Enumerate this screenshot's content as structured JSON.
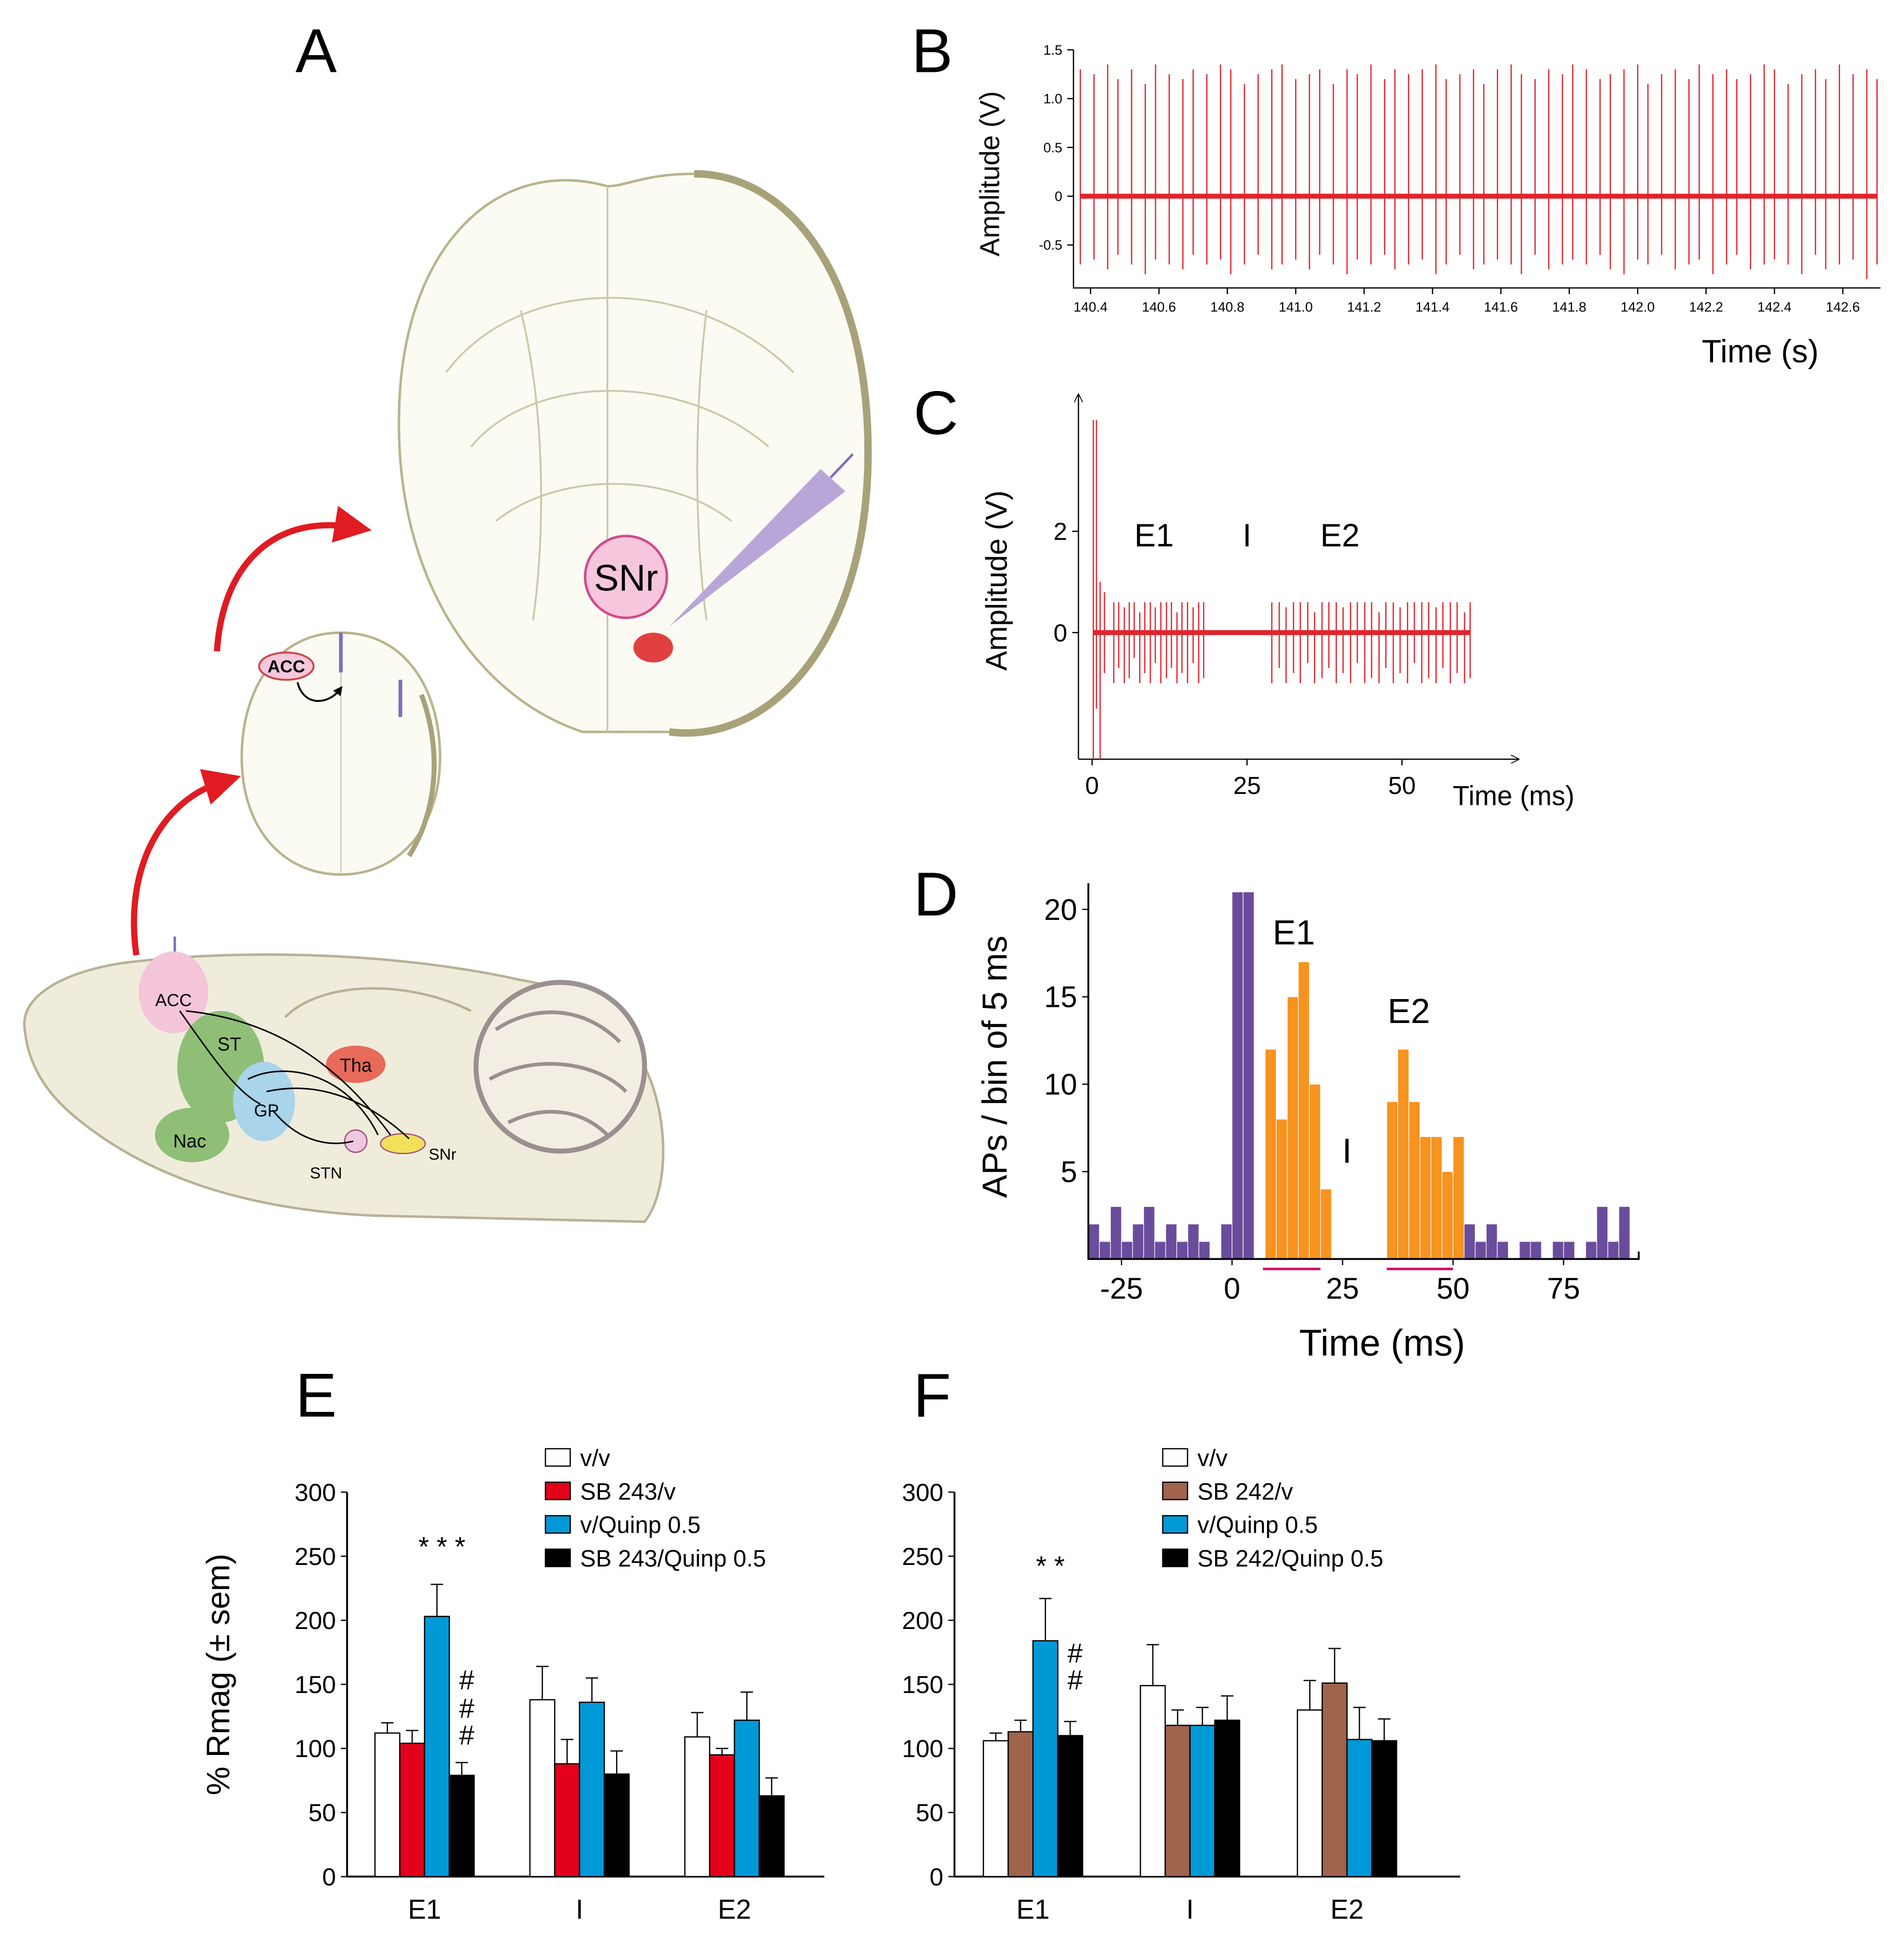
{
  "panels": [
    "A",
    "B",
    "C",
    "D",
    "E",
    "F"
  ],
  "diagram": {
    "labels": [
      "SNr",
      "ACC",
      "ACC",
      "ST",
      "Tha",
      "GP",
      "Nac",
      "STN",
      "SNr"
    ]
  },
  "chart_data": [
    {
      "type": "trace",
      "xlabel": "Time (s)",
      "ylabel": "Amplitude (V)",
      "color": "#e0242c",
      "xlim": [
        140.35,
        142.71
      ],
      "ylim": [
        -0.94,
        1.5
      ],
      "xticks": [
        140.4,
        140.6,
        140.8,
        {
          "value": 141,
          "label": "141.0"
        },
        141.2,
        141.4,
        141.6,
        141.8,
        {
          "value": 142,
          "label": "142.0"
        },
        142.2,
        142.4,
        142.6
      ],
      "yticks": [
        1.5,
        {
          "value": 1,
          "label": "1.0"
        },
        0.5,
        0,
        -0.5
      ],
      "baseline": 0,
      "x": [
        140.37,
        140.41,
        140.45,
        140.48,
        140.52,
        140.56,
        140.59,
        140.63,
        140.67,
        140.7,
        140.74,
        140.78,
        140.81,
        140.85,
        140.89,
        140.93,
        140.96,
        141.0,
        141.04,
        141.07,
        141.11,
        141.15,
        141.18,
        141.22,
        141.26,
        141.29,
        141.33,
        141.37,
        141.41,
        141.44,
        141.48,
        141.52,
        141.55,
        141.59,
        141.63,
        141.66,
        141.7,
        141.74,
        141.78,
        141.81,
        141.85,
        141.89,
        141.92,
        141.96,
        142.0,
        142.03,
        142.07,
        142.11,
        142.15,
        142.18,
        142.22,
        142.26,
        142.29,
        142.33,
        142.37,
        142.4,
        142.44,
        142.48,
        142.52,
        142.55,
        142.59,
        142.63,
        142.67,
        142.7
      ],
      "highs": [
        1.3,
        1.25,
        1.35,
        1.2,
        1.3,
        1.15,
        1.35,
        1.25,
        1.2,
        1.3,
        1.25,
        1.35,
        1.3,
        1.15,
        1.25,
        1.3,
        1.35,
        1.2,
        1.25,
        1.3,
        1.15,
        1.3,
        1.25,
        1.35,
        1.2,
        1.3,
        1.25,
        1.3,
        1.35,
        1.2,
        1.25,
        1.3,
        1.15,
        1.3,
        1.35,
        1.25,
        1.2,
        1.3,
        1.25,
        1.35,
        1.3,
        1.2,
        1.25,
        1.3,
        1.35,
        1.15,
        1.25,
        1.3,
        1.2,
        1.35,
        1.25,
        1.3,
        1.2,
        1.25,
        1.35,
        1.3,
        1.15,
        1.25,
        1.3,
        1.2,
        1.35,
        1.25,
        1.3,
        1.2
      ],
      "lows": [
        -0.7,
        -0.65,
        -0.75,
        -0.6,
        -0.7,
        -0.8,
        -0.65,
        -0.7,
        -0.75,
        -0.6,
        -0.7,
        -0.65,
        -0.8,
        -0.7,
        -0.6,
        -0.75,
        -0.7,
        -0.65,
        -0.75,
        -0.6,
        -0.7,
        -0.8,
        -0.65,
        -0.7,
        -0.6,
        -0.75,
        -0.7,
        -0.65,
        -0.8,
        -0.7,
        -0.6,
        -0.75,
        -0.7,
        -0.65,
        -0.7,
        -0.8,
        -0.6,
        -0.75,
        -0.7,
        -0.65,
        -0.7,
        -0.6,
        -0.75,
        -0.8,
        -0.65,
        -0.7,
        -0.6,
        -0.75,
        -0.7,
        -0.65,
        -0.8,
        -0.7,
        -0.6,
        -0.75,
        -0.7,
        -0.65,
        -0.7,
        -0.8,
        -0.6,
        -0.75,
        -0.7,
        -0.65,
        -0.85,
        -0.7
      ]
    },
    {
      "type": "trace",
      "xlabel": "Time (ms)",
      "ylabel": "Amplitude (V)",
      "color": "#e0242c",
      "xlim": [
        -2.2,
        68.8
      ],
      "ylim": [
        -2.5,
        4.7
      ],
      "xticks": [
        0,
        25,
        50
      ],
      "yticks": [
        0,
        2
      ],
      "baseline": 0,
      "x": [
        0.2,
        0.7,
        1.3,
        2.0,
        3.5,
        4.3,
        5.2,
        6.0,
        6.8,
        7.7,
        8.5,
        9.4,
        10.2,
        11.1,
        12.0,
        12.8,
        13.7,
        14.5,
        15.4,
        16.3,
        17.2,
        18.0,
        29.0,
        30.2,
        31.3,
        32.5,
        33.6,
        34.8,
        35.9,
        37.1,
        38.2,
        39.4,
        40.5,
        41.7,
        42.8,
        44.0,
        45.1,
        46.3,
        47.4,
        48.6,
        49.7,
        50.9,
        52.0,
        53.2,
        54.3,
        55.5,
        56.6,
        57.8,
        58.9,
        60.1,
        61.0
      ],
      "highs": [
        4.2,
        4.2,
        1.0,
        0.8,
        0.6,
        0.6,
        0.5,
        0.6,
        0.6,
        0.4,
        0.6,
        0.6,
        0.5,
        0.6,
        0.6,
        0.6,
        0.4,
        0.6,
        0.6,
        0.5,
        0.6,
        0.6,
        0.6,
        0.6,
        0.5,
        0.6,
        0.6,
        0.6,
        0.4,
        0.6,
        0.6,
        0.6,
        0.5,
        0.6,
        0.6,
        0.6,
        0.6,
        0.4,
        0.6,
        0.6,
        0.5,
        0.6,
        0.6,
        0.6,
        0.6,
        0.5,
        0.6,
        0.6,
        0.6,
        0.4,
        0.6
      ],
      "lows": [
        -2.5,
        -1.5,
        -2.5,
        -0.8,
        -1.0,
        -0.7,
        -1.0,
        -0.9,
        -0.5,
        -1.0,
        -0.8,
        -1.0,
        -0.6,
        -1.0,
        -0.9,
        -0.7,
        -1.0,
        -0.8,
        -1.0,
        -0.6,
        -1.0,
        -0.9,
        -1.0,
        -0.7,
        -1.0,
        -0.8,
        -1.0,
        -0.6,
        -1.0,
        -0.9,
        -0.7,
        -1.0,
        -0.8,
        -1.0,
        -0.6,
        -1.0,
        -0.9,
        -1.0,
        -0.7,
        -1.0,
        -0.8,
        -1.0,
        -0.6,
        -1.0,
        -0.9,
        -1.0,
        -0.7,
        -1.0,
        -0.8,
        -1.0,
        -0.9
      ],
      "annotations": [
        {
          "text": "E1",
          "x": 10,
          "y": 1.7
        },
        {
          "text": "I",
          "x": 25,
          "y": 1.7
        },
        {
          "text": "E2",
          "x": 40,
          "y": 1.7
        }
      ]
    },
    {
      "type": "histogram",
      "xlabel": "Time (ms)",
      "ylabel": "APs / bin of 5 ms",
      "color": "#6a4c9c",
      "highlight_color": "#f7931e",
      "xlim": [
        -32.5,
        92
      ],
      "ylim": [
        0,
        21.5
      ],
      "xticks": [
        -25,
        0,
        25,
        50,
        75
      ],
      "yticks": [
        5,
        10,
        15,
        20
      ],
      "bins": [
        -32.5,
        -30,
        -27.5,
        -25,
        -22.5,
        -20,
        -17.5,
        -15,
        -12.5,
        -10,
        -7.5,
        -5,
        -2.5,
        0,
        2.5,
        5,
        7.5,
        10,
        12.5,
        15,
        17.5,
        20,
        22.5,
        25,
        27.5,
        30,
        32.5,
        35,
        37.5,
        40,
        42.5,
        45,
        47.5,
        50,
        52.5,
        55,
        57.5,
        60,
        62.5,
        65,
        67.5,
        70,
        72.5,
        75,
        77.5,
        80,
        82.5,
        85,
        87.5,
        90
      ],
      "counts": [
        2,
        1,
        3,
        1,
        2,
        3,
        1,
        2,
        1,
        2,
        1,
        0,
        2,
        21,
        21,
        0,
        12,
        8,
        15,
        17,
        10,
        4,
        0,
        0,
        0,
        0,
        0,
        9,
        12,
        9,
        7,
        7,
        5,
        7,
        2,
        1,
        2,
        1,
        0,
        1,
        1,
        0,
        1,
        1,
        0,
        1,
        3,
        1,
        3
      ],
      "highlight_bins": [
        [
          7.5,
          22.5
        ],
        [
          35,
          52.5
        ]
      ],
      "underlines": [
        [
          7,
          20
        ],
        [
          35,
          50
        ]
      ],
      "underline_color": "#d6006f",
      "annotations": [
        {
          "text": "E1",
          "x": 14,
          "y": 18
        },
        {
          "text": "I",
          "x": 26,
          "y": 5.5
        },
        {
          "text": "E2",
          "x": 40,
          "y": 13.5
        }
      ]
    },
    {
      "type": "bar",
      "ylabel": "% Rmag (± sem)",
      "categories": [
        "E1",
        "I",
        "E2"
      ],
      "ylim": [
        0,
        300
      ],
      "yticks": [
        0,
        50,
        100,
        150,
        200,
        250,
        300
      ],
      "series": [
        {
          "name": "v/v",
          "color": "#ffffff",
          "values": [
            112,
            138,
            109
          ],
          "errors": [
            8,
            26,
            19
          ]
        },
        {
          "name": "SB 243/v",
          "color": "#e3001b",
          "values": [
            104,
            88,
            95
          ],
          "errors": [
            10,
            19,
            5
          ]
        },
        {
          "name": "v/Quinp 0.5",
          "color": "#0099d8",
          "values": [
            203,
            136,
            122
          ],
          "errors": [
            25,
            19,
            22
          ]
        },
        {
          "name": "SB 243/Quinp 0.5",
          "color": "#000000",
          "values": [
            79,
            80,
            63
          ],
          "errors": [
            10,
            18,
            14
          ]
        }
      ],
      "annotations": [
        {
          "text": "* * *",
          "category": 0,
          "series": 2,
          "y": 250
        },
        {
          "text": "#",
          "category": 0,
          "series": 3,
          "y": 146
        },
        {
          "text": "#",
          "category": 0,
          "series": 3,
          "y": 124
        },
        {
          "text": "#",
          "category": 0,
          "series": 3,
          "y": 103
        }
      ]
    },
    {
      "type": "bar",
      "categories": [
        "E1",
        "I",
        "E2"
      ],
      "ylim": [
        0,
        300
      ],
      "yticks": [
        0,
        50,
        100,
        150,
        200,
        250,
        300
      ],
      "series": [
        {
          "name": "v/v",
          "color": "#ffffff",
          "values": [
            106,
            149,
            130
          ],
          "errors": [
            6,
            32,
            23
          ]
        },
        {
          "name": "SB 242/v",
          "color": "#a0644c",
          "values": [
            113,
            118,
            151
          ],
          "errors": [
            9,
            12,
            27
          ]
        },
        {
          "name": "v/Quinp 0.5",
          "color": "#0099d8",
          "values": [
            184,
            118,
            107
          ],
          "errors": [
            33,
            14,
            25
          ]
        },
        {
          "name": "SB 242/Quinp 0.5",
          "color": "#000000",
          "values": [
            110,
            122,
            106
          ],
          "errors": [
            11,
            19,
            17
          ]
        }
      ],
      "annotations": [
        {
          "text": "* *",
          "category": 0,
          "series": 2,
          "y": 235
        },
        {
          "text": "#",
          "category": 0,
          "series": 3,
          "y": 167
        },
        {
          "text": "#",
          "category": 0,
          "series": 3,
          "y": 146
        }
      ]
    }
  ]
}
